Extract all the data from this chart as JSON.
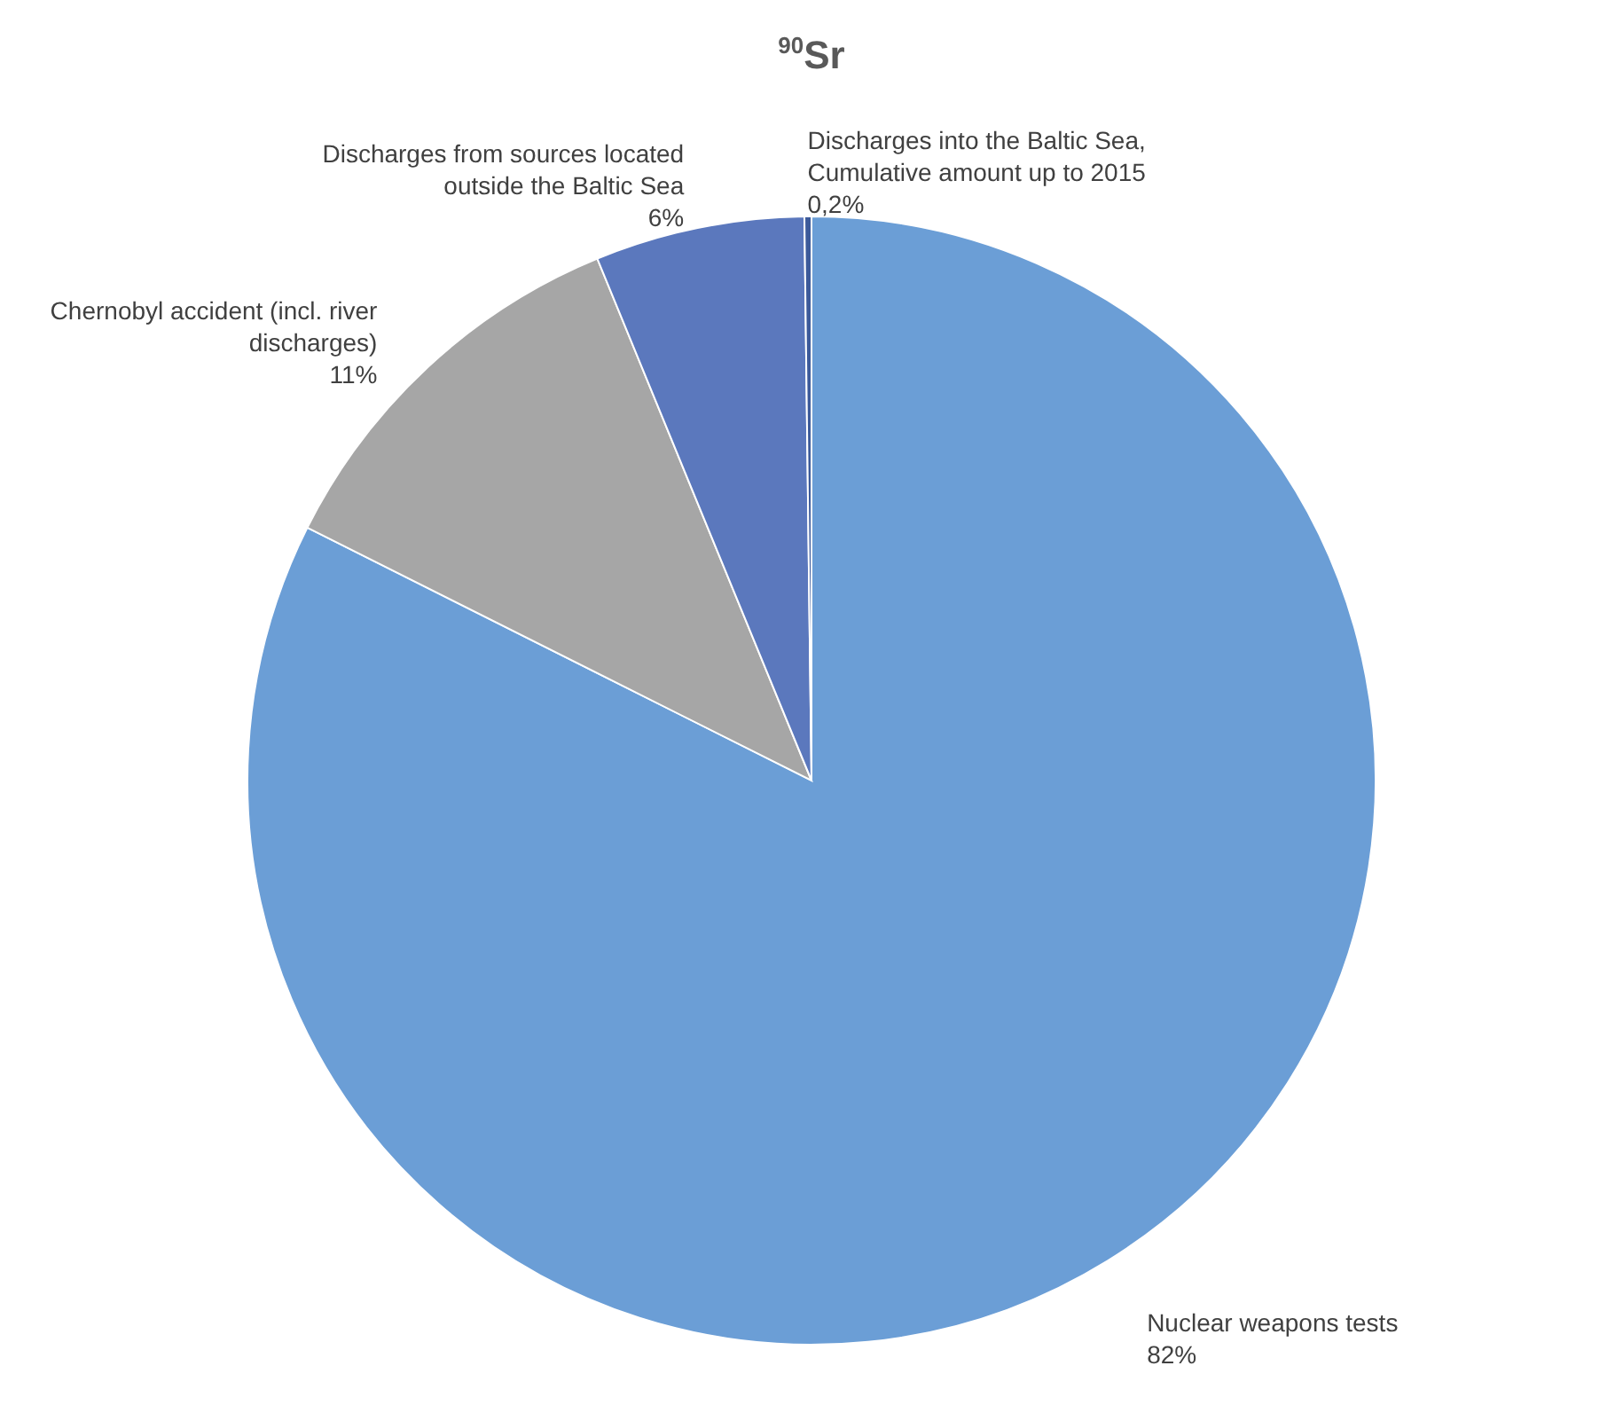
{
  "chart_data": {
    "type": "pie",
    "title": "$^{90}$Sr",
    "categories": [
      "Nuclear weapons tests",
      "Chernobyl accident (incl. river discharges)",
      "Discharges from sources located outside the Baltic Sea",
      "Discharges into the Baltic Sea, Cumulative amount up to 2015"
    ],
    "values": [
      82.4,
      11.4,
      6,
      0.2
    ],
    "value_labels": [
      "82%",
      "11%",
      "6%",
      "0,2%"
    ],
    "colors": [
      "#6b9ed6",
      "#a6a6a6",
      "#5b78bd",
      "#3c5a9a"
    ]
  }
}
